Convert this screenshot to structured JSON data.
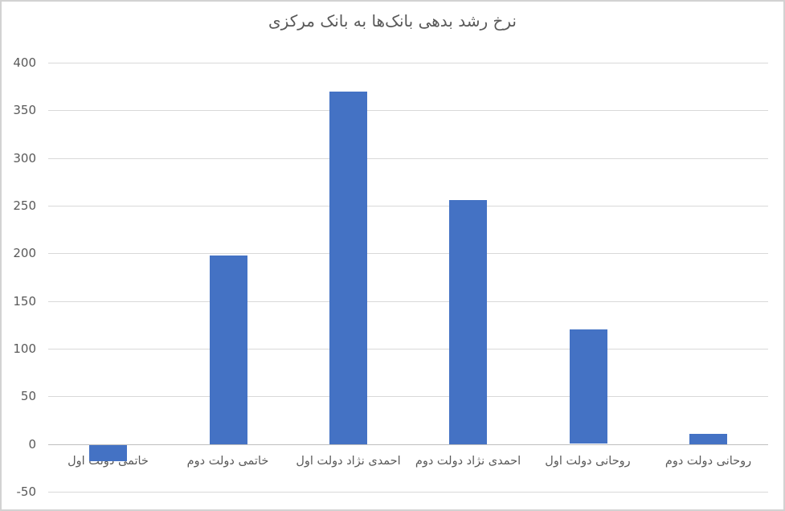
{
  "chart_data": {
    "type": "bar",
    "title": "نرخ رشد بدهی بانک‌ها به بانک مرکزی",
    "categories": [
      "خاتمی دولت اول",
      "خاتمی دولت دوم",
      "احمدی نژاد دولت اول",
      "احمدی نژاد دولت دوم",
      "روحانی دولت اول",
      "روحانی دولت دوم"
    ],
    "values": [
      -17,
      198,
      370,
      256,
      120,
      11
    ],
    "xlabel": "",
    "ylabel": "",
    "ylim": [
      -50,
      400
    ],
    "ytick_step": 50,
    "yticks": [
      400,
      350,
      300,
      250,
      200,
      150,
      100,
      50,
      0,
      -50
    ],
    "grid": true,
    "legend_position": "none",
    "colors": {
      "bar": "#4472c4",
      "gridline": "#d9d9d9",
      "axis_line": "#bfbfbf",
      "tick_label": "#595959",
      "title": "#595959"
    }
  }
}
